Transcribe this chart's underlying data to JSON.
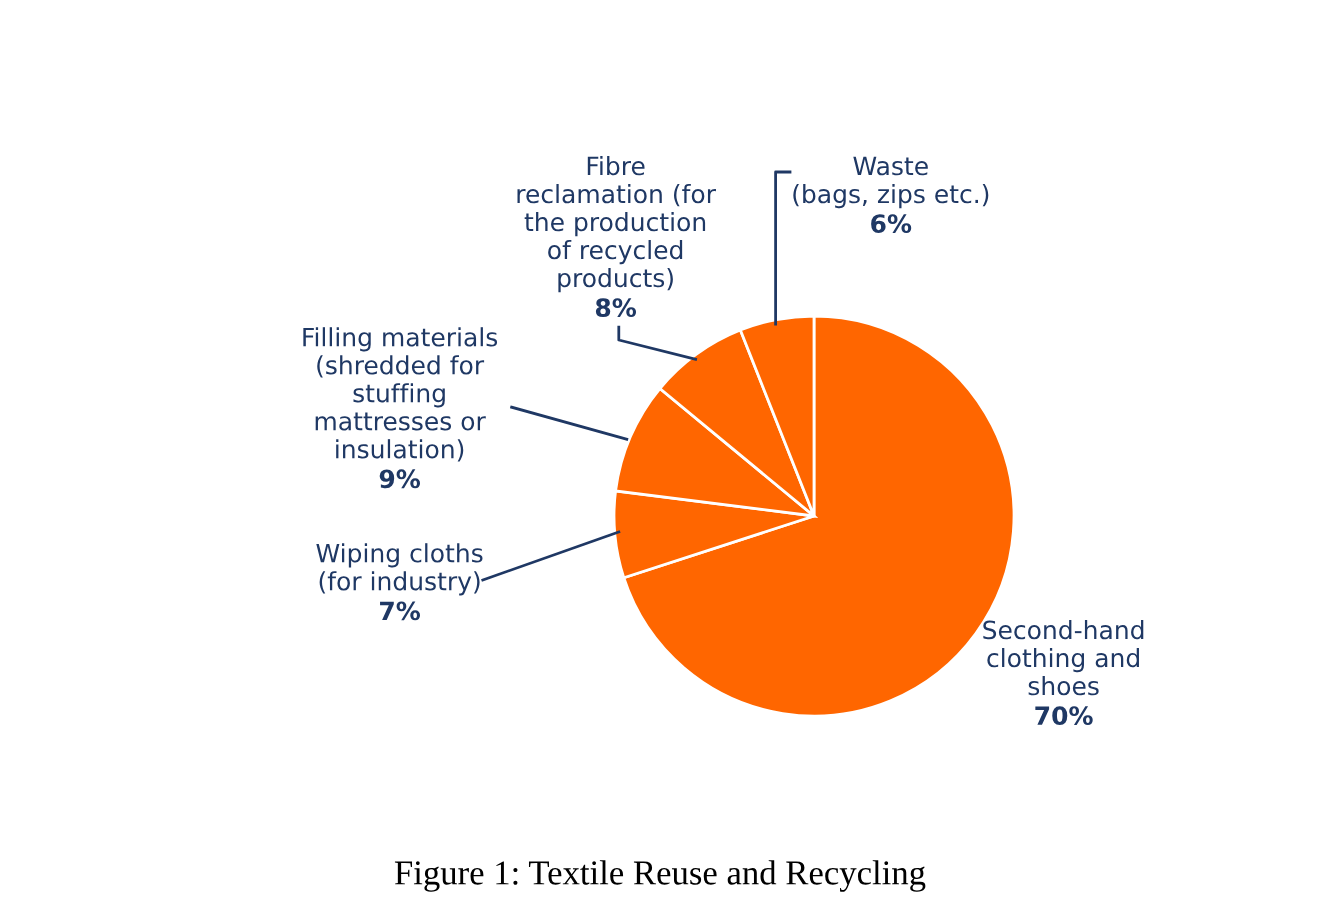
{
  "chart_data": {
    "type": "pie",
    "categories": [
      "Second-hand\nclothing and\nshoes",
      "Wiping cloths\n(for industry)",
      "Filling materials\n(shredded for\nstuffing\nmattresses or\ninsulation)",
      "Fibre\nreclamation (for\nthe production\nof recycled\nproducts)",
      "Waste\n(bags, zips etc.)"
    ],
    "values": [
      70,
      7,
      9,
      8,
      6
    ],
    "colors": [
      "#ff6600",
      "#ff6600",
      "#ff6600",
      "#ff6600",
      "#ff6600"
    ],
    "value_labels": [
      "70%",
      "7%",
      "9%",
      "8%",
      "6%"
    ],
    "annotations": [
      "Figure 1: Textile Reuse and Recycling"
    ]
  }
}
